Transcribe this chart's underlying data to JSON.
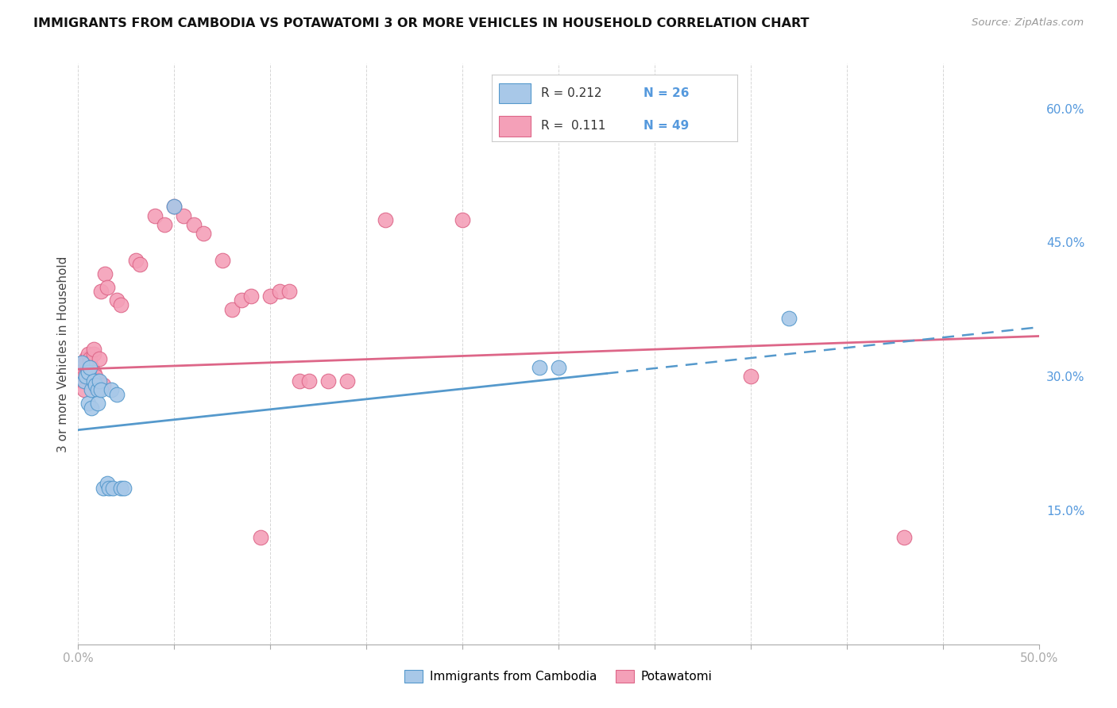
{
  "title": "IMMIGRANTS FROM CAMBODIA VS POTAWATOMI 3 OR MORE VEHICLES IN HOUSEHOLD CORRELATION CHART",
  "source": "Source: ZipAtlas.com",
  "ylabel": "3 or more Vehicles in Household",
  "xlim": [
    0.0,
    0.5
  ],
  "ylim": [
    0.0,
    0.65
  ],
  "legend_labels": [
    "Immigrants from Cambodia",
    "Potawatomi"
  ],
  "blue_R": "0.212",
  "blue_N": "26",
  "pink_R": "0.111",
  "pink_N": "49",
  "blue_color": "#a8c8e8",
  "pink_color": "#f4a0b8",
  "blue_edge_color": "#5599cc",
  "pink_edge_color": "#dd6688",
  "blue_line_color": "#5599cc",
  "pink_line_color": "#dd6688",
  "blue_scatter": [
    [
      0.002,
      0.315
    ],
    [
      0.003,
      0.295
    ],
    [
      0.004,
      0.3
    ],
    [
      0.005,
      0.305
    ],
    [
      0.005,
      0.27
    ],
    [
      0.006,
      0.31
    ],
    [
      0.007,
      0.285
    ],
    [
      0.007,
      0.265
    ],
    [
      0.008,
      0.295
    ],
    [
      0.009,
      0.29
    ],
    [
      0.01,
      0.285
    ],
    [
      0.01,
      0.27
    ],
    [
      0.011,
      0.295
    ],
    [
      0.012,
      0.285
    ],
    [
      0.013,
      0.175
    ],
    [
      0.015,
      0.18
    ],
    [
      0.016,
      0.175
    ],
    [
      0.017,
      0.285
    ],
    [
      0.018,
      0.175
    ],
    [
      0.02,
      0.28
    ],
    [
      0.022,
      0.175
    ],
    [
      0.024,
      0.175
    ],
    [
      0.05,
      0.49
    ],
    [
      0.24,
      0.31
    ],
    [
      0.25,
      0.31
    ],
    [
      0.37,
      0.365
    ]
  ],
  "pink_scatter": [
    [
      0.001,
      0.305
    ],
    [
      0.002,
      0.295
    ],
    [
      0.003,
      0.285
    ],
    [
      0.003,
      0.3
    ],
    [
      0.004,
      0.32
    ],
    [
      0.004,
      0.315
    ],
    [
      0.005,
      0.325
    ],
    [
      0.005,
      0.305
    ],
    [
      0.006,
      0.32
    ],
    [
      0.006,
      0.315
    ],
    [
      0.007,
      0.31
    ],
    [
      0.007,
      0.295
    ],
    [
      0.008,
      0.325
    ],
    [
      0.008,
      0.33
    ],
    [
      0.008,
      0.305
    ],
    [
      0.009,
      0.3
    ],
    [
      0.01,
      0.295
    ],
    [
      0.01,
      0.285
    ],
    [
      0.011,
      0.32
    ],
    [
      0.012,
      0.395
    ],
    [
      0.013,
      0.29
    ],
    [
      0.014,
      0.415
    ],
    [
      0.015,
      0.4
    ],
    [
      0.02,
      0.385
    ],
    [
      0.022,
      0.38
    ],
    [
      0.03,
      0.43
    ],
    [
      0.032,
      0.425
    ],
    [
      0.04,
      0.48
    ],
    [
      0.045,
      0.47
    ],
    [
      0.05,
      0.49
    ],
    [
      0.055,
      0.48
    ],
    [
      0.06,
      0.47
    ],
    [
      0.065,
      0.46
    ],
    [
      0.075,
      0.43
    ],
    [
      0.08,
      0.375
    ],
    [
      0.085,
      0.385
    ],
    [
      0.09,
      0.39
    ],
    [
      0.095,
      0.12
    ],
    [
      0.1,
      0.39
    ],
    [
      0.105,
      0.395
    ],
    [
      0.11,
      0.395
    ],
    [
      0.115,
      0.295
    ],
    [
      0.12,
      0.295
    ],
    [
      0.13,
      0.295
    ],
    [
      0.14,
      0.295
    ],
    [
      0.16,
      0.475
    ],
    [
      0.2,
      0.475
    ],
    [
      0.35,
      0.3
    ],
    [
      0.43,
      0.12
    ]
  ],
  "background_color": "#ffffff",
  "grid_color": "#cccccc"
}
